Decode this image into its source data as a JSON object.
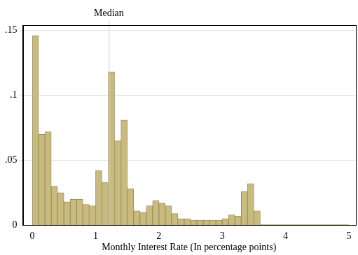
{
  "chart_data": {
    "type": "histogram",
    "x_label": "Monthly Interest Rate (In percentage points)",
    "bins": [
      0,
      0.1,
      0.2,
      0.3,
      0.4,
      0.5,
      0.6,
      0.7,
      0.8,
      0.9,
      1.0,
      1.1,
      1.2,
      1.3,
      1.4,
      1.5,
      1.6,
      1.7,
      1.8,
      1.9,
      2.0,
      2.1,
      2.2,
      2.3,
      2.4,
      2.5,
      2.6,
      2.7,
      2.8,
      2.9,
      3.0,
      3.1,
      3.2,
      3.3,
      3.4,
      3.5,
      3.6,
      3.7,
      3.8,
      3.9,
      4.0,
      4.1,
      4.2,
      4.3,
      4.4,
      4.5,
      4.6,
      4.7,
      4.8,
      4.9,
      5.0
    ],
    "values": [
      0.146,
      0.07,
      0.072,
      0.03,
      0.025,
      0.018,
      0.02,
      0.02,
      0.016,
      0.015,
      0.042,
      0.033,
      0.118,
      0.065,
      0.081,
      0.028,
      0.011,
      0.01,
      0.015,
      0.019,
      0.017,
      0.015,
      0.009,
      0.005,
      0.005,
      0.004,
      0.004,
      0.004,
      0.004,
      0.004,
      0.005,
      0.008,
      0.007,
      0.026,
      0.032,
      0.011,
      0.0005,
      0.0005,
      0.0005,
      0.0005,
      0.0005,
      0.0005,
      0.0005,
      0.0005,
      0.0005,
      0.0005,
      0.0005,
      0.0005,
      0.0005,
      0.0005
    ],
    "color": "#c9bb7e",
    "xlim": [
      -0.15,
      5.1
    ],
    "xticks": [
      0,
      1,
      2,
      3,
      4,
      5
    ],
    "ylim": [
      0,
      0.154
    ],
    "yticks": [
      0,
      {
        "value": 0.05,
        "label": ".05"
      },
      {
        "value": 0.1,
        "label": ".1"
      },
      {
        "value": 0.15,
        "label": ".15"
      }
    ],
    "grid": true,
    "annotations": [
      {
        "x": 1.21,
        "label": "Median"
      }
    ]
  }
}
